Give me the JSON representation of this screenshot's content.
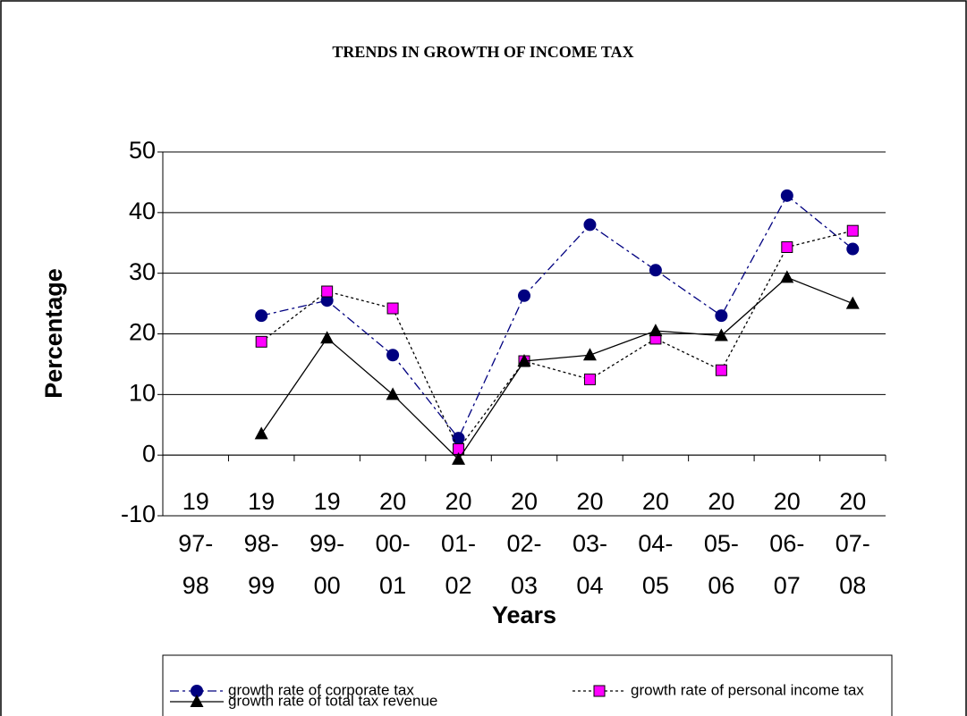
{
  "chart_data": {
    "type": "line",
    "title": "TRENDS IN GROWTH OF INCOME TAX",
    "x_label": "Years",
    "y_label": "Percentage",
    "categories": [
      "1997-98",
      "1998-99",
      "1999-00",
      "2000-01",
      "2001-02",
      "2002-03",
      "2003-04",
      "2004-05",
      "2005-06",
      "2006-07",
      "2007-08"
    ],
    "series": [
      {
        "name": "growth rate of corporate tax",
        "color": "#000080",
        "marker": "circle",
        "dash": "dashdot",
        "values": [
          null,
          23,
          25.5,
          16.5,
          2.8,
          26.3,
          38,
          30.5,
          23,
          42.8,
          34
        ]
      },
      {
        "name": "growth rate of personal income tax",
        "color": "#000000",
        "marker_color": "#ff00ff",
        "marker": "square",
        "dash": "dot",
        "values": [
          null,
          18.7,
          27,
          24.2,
          1,
          15.5,
          12.5,
          19.2,
          14,
          34.3,
          37
        ]
      },
      {
        "name": "growth rate of total tax revenue",
        "color": "#000000",
        "marker": "triangle",
        "dash": "solid",
        "values": [
          null,
          3.5,
          19.3,
          10,
          -0.7,
          15.5,
          16.5,
          20.5,
          19.7,
          29.3,
          25
        ]
      }
    ],
    "ylim": [
      -10,
      50
    ],
    "yticks": [
      -10,
      0,
      10,
      20,
      30,
      40,
      50
    ],
    "grid": true
  }
}
